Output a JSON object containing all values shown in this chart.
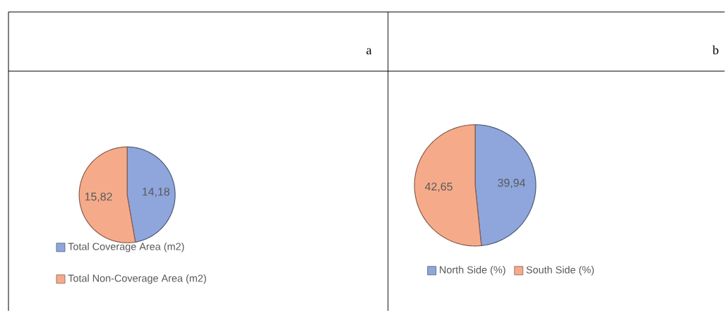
{
  "chart_data": [
    {
      "type": "pie",
      "title": "a",
      "categories": [
        "Total Coverage Area (m2)",
        "Total Non-Coverage Area (m2)"
      ],
      "values": [
        14.18,
        15.82
      ],
      "value_labels": [
        "14,18",
        "15,82"
      ],
      "colors": [
        "#8fa6dc",
        "#f5ab8a"
      ],
      "legend": "bottom"
    },
    {
      "type": "pie",
      "title": "b",
      "categories": [
        "North Side (%)",
        "South Side (%)"
      ],
      "values": [
        39.94,
        42.65
      ],
      "value_labels": [
        "39,94",
        "42,65"
      ],
      "colors": [
        "#8fa6dc",
        "#f5ab8a"
      ],
      "legend": "bottom"
    }
  ]
}
